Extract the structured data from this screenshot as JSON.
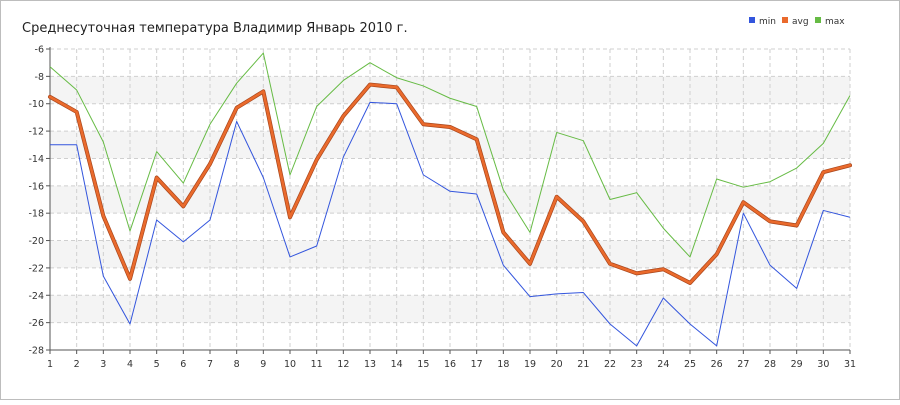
{
  "chart_data": {
    "type": "line",
    "title": "Среднесуточная температура Владимир  Январь 2010 г.",
    "xlabel": "",
    "ylabel": "",
    "x": [
      1,
      2,
      3,
      4,
      5,
      6,
      7,
      8,
      9,
      10,
      11,
      12,
      13,
      14,
      15,
      16,
      17,
      18,
      19,
      20,
      21,
      22,
      23,
      24,
      25,
      26,
      27,
      28,
      29,
      30,
      31
    ],
    "xlim": [
      1,
      31
    ],
    "ylim": [
      -28,
      -6
    ],
    "y_ticks": [
      -6,
      -8,
      -10,
      -12,
      -14,
      -16,
      -18,
      -20,
      -22,
      -24,
      -26,
      -28
    ],
    "grid": true,
    "legend_position": "top-right",
    "series": [
      {
        "name": "min",
        "color": "#3355dd",
        "values": [
          -13.0,
          -13.0,
          -22.6,
          -26.1,
          -18.5,
          -20.1,
          -18.5,
          -11.3,
          -15.4,
          -21.2,
          -20.4,
          -13.9,
          -9.9,
          -10.0,
          -15.2,
          -16.4,
          -16.6,
          -21.8,
          -24.1,
          -23.9,
          -23.8,
          -26.1,
          -27.7,
          -24.2,
          -26.1,
          -27.7,
          -18.0,
          -21.8,
          -23.5,
          -17.8,
          -18.3
        ]
      },
      {
        "name": "avg",
        "color": "#ea6a2c",
        "values": [
          -9.5,
          -10.6,
          -18.2,
          -22.8,
          -15.4,
          -17.5,
          -14.4,
          -10.3,
          -9.1,
          -18.3,
          -14.1,
          -10.9,
          -8.6,
          -8.8,
          -11.5,
          -11.7,
          -12.6,
          -19.4,
          -21.7,
          -16.8,
          -18.6,
          -21.7,
          -22.4,
          -22.1,
          -23.1,
          -21.0,
          -17.2,
          -18.6,
          -18.9,
          -15.0,
          -14.5
        ]
      },
      {
        "name": "max",
        "color": "#66bb44",
        "values": [
          -7.3,
          -9.0,
          -12.8,
          -19.3,
          -13.5,
          -15.8,
          -11.5,
          -8.5,
          -6.3,
          -15.2,
          -10.2,
          -8.3,
          -7.0,
          -8.1,
          -8.7,
          -9.6,
          -10.2,
          -16.3,
          -19.4,
          -12.1,
          -12.7,
          -17.0,
          -16.5,
          -19.1,
          -21.2,
          -15.5,
          -16.1,
          -15.7,
          -14.7,
          -12.9,
          -9.4
        ]
      }
    ]
  }
}
